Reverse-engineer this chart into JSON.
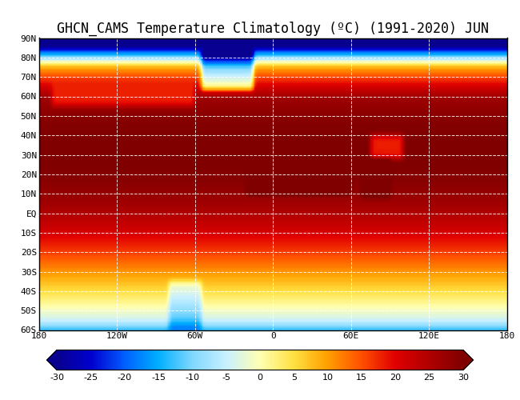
{
  "title": "GHCN_CAMS Temperature Climatology (ºC) (1991-2020) JUN",
  "title_fontsize": 12,
  "colorbar_ticks": [
    -30,
    -25,
    -20,
    -15,
    -10,
    -5,
    0,
    5,
    10,
    15,
    20,
    25,
    30
  ],
  "clim_min": -30,
  "clim_max": 30,
  "lon_min": -180,
  "lon_max": 180,
  "lat_min": -60,
  "lat_max": 90,
  "xtick_positions": [
    -180,
    -120,
    -60,
    0,
    60,
    120,
    180
  ],
  "xtick_labels": [
    "180",
    "120W",
    "60W",
    "0",
    "60E",
    "120E",
    "180"
  ],
  "ytick_positions": [
    -60,
    -50,
    -40,
    -30,
    -20,
    -10,
    0,
    10,
    20,
    30,
    40,
    50,
    60,
    70,
    80,
    90
  ],
  "ytick_labels": [
    "60S",
    "50S",
    "40S",
    "30S",
    "20S",
    "10S",
    "EQ",
    "10N",
    "20N",
    "30N",
    "40N",
    "50N",
    "60N",
    "70N",
    "80N",
    "90N"
  ],
  "cmap_colors": [
    [
      0.0,
      "#08008f"
    ],
    [
      0.083,
      "#0000d0"
    ],
    [
      0.167,
      "#0060ff"
    ],
    [
      0.25,
      "#00b0ff"
    ],
    [
      0.333,
      "#80d8ff"
    ],
    [
      0.417,
      "#c8f0ff"
    ],
    [
      0.5,
      "#ffffb0"
    ],
    [
      0.583,
      "#ffe040"
    ],
    [
      0.667,
      "#ffa000"
    ],
    [
      0.75,
      "#ff5000"
    ],
    [
      0.833,
      "#e00000"
    ],
    [
      0.917,
      "#b00000"
    ],
    [
      1.0,
      "#800000"
    ]
  ]
}
